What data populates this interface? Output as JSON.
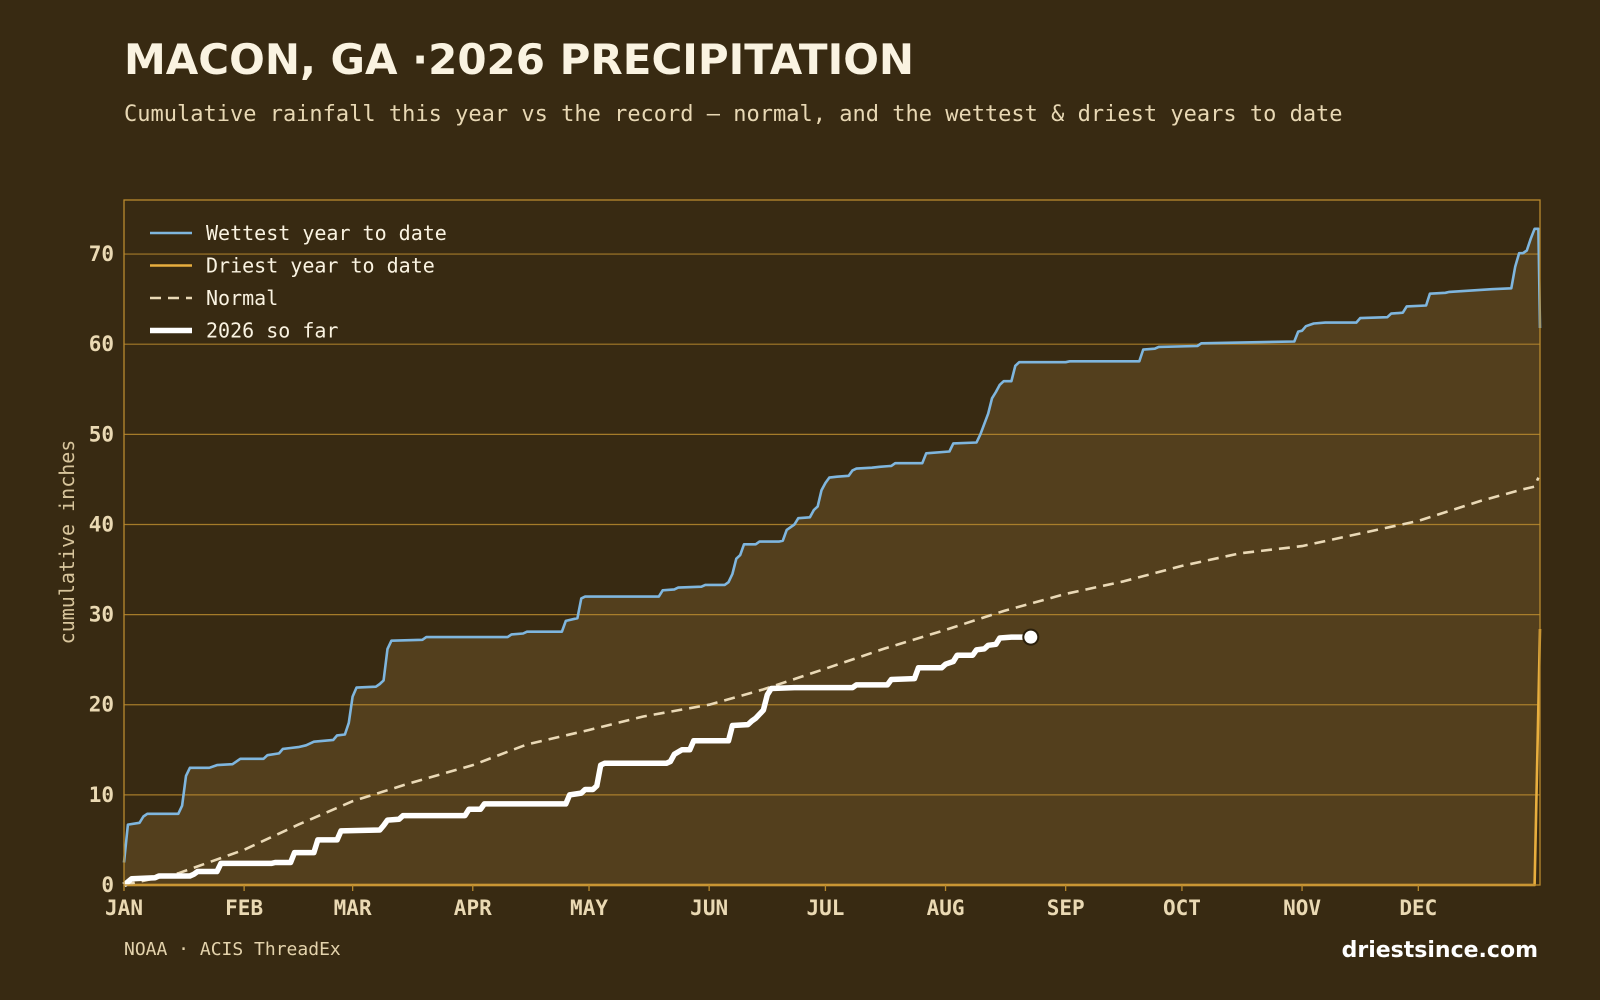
{
  "header": {
    "title": "MACON, GA ·2026 PRECIPITATION",
    "subtitle": "Cumulative rainfall this year vs the record — normal, and the wettest & driest years to date"
  },
  "footer": {
    "source": "NOAA · ACIS ThreadEx",
    "brand": "driestsince.com"
  },
  "colors": {
    "background": "#382a12",
    "fill": "#533f1d",
    "grid": "#b98a2e",
    "wettest": "#7fb6de",
    "driest": "#e8ae3e",
    "normal": "#ead9b6",
    "current": "#ffffff"
  },
  "chart_data": {
    "type": "line",
    "title": "MACON, GA ·2026 PRECIPITATION",
    "subtitle": "Cumulative rainfall this year vs the record — normal, and the wettest & driest years to date",
    "xlabel": "",
    "ylabel": "cumulative inches",
    "x_unit": "day of year",
    "xlim": [
      1,
      366
    ],
    "ylim": [
      0,
      76
    ],
    "y_ticks": [
      0,
      10,
      20,
      30,
      40,
      50,
      60,
      70
    ],
    "x_ticks": [
      {
        "label": "JAN",
        "day": 1
      },
      {
        "label": "FEB",
        "day": 32
      },
      {
        "label": "MAR",
        "day": 60
      },
      {
        "label": "APR",
        "day": 91
      },
      {
        "label": "MAY",
        "day": 121
      },
      {
        "label": "JUN",
        "day": 152
      },
      {
        "label": "JUL",
        "day": 182
      },
      {
        "label": "AUG",
        "day": 213
      },
      {
        "label": "SEP",
        "day": 244
      },
      {
        "label": "OCT",
        "day": 274
      },
      {
        "label": "NOV",
        "day": 305
      },
      {
        "label": "DEC",
        "day": 335
      }
    ],
    "grid": true,
    "legend_position": "top-left",
    "series": [
      {
        "name": "Wettest year to date",
        "key": "wettest",
        "style": "solid",
        "points": [
          [
            1,
            2.5
          ],
          [
            2,
            6.7
          ],
          [
            5,
            6.9
          ],
          [
            6,
            7.6
          ],
          [
            7,
            7.9
          ],
          [
            15,
            7.9
          ],
          [
            16,
            8.8
          ],
          [
            17,
            12.1
          ],
          [
            18,
            13
          ],
          [
            23,
            13
          ],
          [
            25,
            13.3
          ],
          [
            29,
            13.4
          ],
          [
            31,
            14
          ],
          [
            37,
            14
          ],
          [
            38,
            14.4
          ],
          [
            41,
            14.6
          ],
          [
            42,
            15.1
          ],
          [
            44,
            15.2
          ],
          [
            46,
            15.3
          ],
          [
            48,
            15.5
          ],
          [
            50,
            15.9
          ],
          [
            55,
            16.1
          ],
          [
            56,
            16.6
          ],
          [
            58,
            16.7
          ],
          [
            59,
            18
          ],
          [
            60,
            20.9
          ],
          [
            61,
            21.9
          ],
          [
            66,
            22
          ],
          [
            67,
            22.3
          ],
          [
            68,
            22.7
          ],
          [
            69,
            26.2
          ],
          [
            70,
            27.1
          ],
          [
            78,
            27.2
          ],
          [
            79,
            27.5
          ],
          [
            90,
            27.5
          ],
          [
            91,
            27.5
          ],
          [
            100,
            27.5
          ],
          [
            101,
            27.8
          ],
          [
            104,
            27.9
          ],
          [
            105,
            28.1
          ],
          [
            114,
            28.1
          ],
          [
            115,
            29.3
          ],
          [
            118,
            29.6
          ],
          [
            119,
            31.8
          ],
          [
            120,
            32
          ],
          [
            139,
            32
          ],
          [
            140,
            32.7
          ],
          [
            143,
            32.8
          ],
          [
            144,
            33
          ],
          [
            150,
            33.1
          ],
          [
            151,
            33.3
          ],
          [
            156,
            33.3
          ],
          [
            157,
            33.6
          ],
          [
            158,
            34.5
          ],
          [
            159,
            36.2
          ],
          [
            160,
            36.6
          ],
          [
            161,
            37.8
          ],
          [
            164,
            37.8
          ],
          [
            165,
            38.1
          ],
          [
            170,
            38.1
          ],
          [
            171,
            38.2
          ],
          [
            172,
            39.4
          ],
          [
            174,
            40
          ],
          [
            175,
            40.7
          ],
          [
            178,
            40.8
          ],
          [
            179,
            41.6
          ],
          [
            180,
            42
          ],
          [
            181,
            43.8
          ],
          [
            182,
            44.6
          ],
          [
            183,
            45.2
          ],
          [
            185,
            45.3
          ],
          [
            188,
            45.4
          ],
          [
            189,
            46
          ],
          [
            190,
            46.2
          ],
          [
            194,
            46.3
          ],
          [
            196,
            46.4
          ],
          [
            199,
            46.5
          ],
          [
            200,
            46.8
          ],
          [
            207,
            46.8
          ],
          [
            208,
            47.9
          ],
          [
            214,
            48.1
          ],
          [
            215,
            49
          ],
          [
            221,
            49.1
          ],
          [
            222,
            50
          ],
          [
            224,
            52.3
          ],
          [
            225,
            54
          ],
          [
            226,
            54.7
          ],
          [
            227,
            55.5
          ],
          [
            228,
            55.9
          ],
          [
            230,
            55.9
          ],
          [
            231,
            57.6
          ],
          [
            232,
            58
          ],
          [
            244,
            58
          ],
          [
            245,
            58.1
          ],
          [
            263,
            58.1
          ],
          [
            264,
            59.4
          ],
          [
            267,
            59.5
          ],
          [
            268,
            59.7
          ],
          [
            278,
            59.8
          ],
          [
            279,
            60.1
          ],
          [
            303,
            60.3
          ],
          [
            304,
            61.4
          ],
          [
            305,
            61.5
          ],
          [
            306,
            62
          ],
          [
            308,
            62.3
          ],
          [
            311,
            62.4
          ],
          [
            319,
            62.4
          ],
          [
            320,
            62.9
          ],
          [
            327,
            63
          ],
          [
            328,
            63.4
          ],
          [
            331,
            63.5
          ],
          [
            332,
            64.2
          ],
          [
            337,
            64.3
          ],
          [
            338,
            65.6
          ],
          [
            342,
            65.7
          ],
          [
            343,
            65.8
          ],
          [
            354,
            66.1
          ],
          [
            359,
            66.2
          ],
          [
            360,
            68.6
          ],
          [
            361,
            70.1
          ],
          [
            362,
            70.1
          ],
          [
            363,
            70.4
          ],
          [
            364,
            71.7
          ],
          [
            365,
            72.8
          ],
          [
            366,
            72.8
          ],
          [
            366.4,
            61.8
          ]
        ]
      },
      {
        "name": "Driest year to date",
        "key": "driest",
        "style": "solid",
        "points": [
          [
            1,
            0
          ],
          [
            365,
            0
          ],
          [
            366.4,
            28.4
          ]
        ]
      },
      {
        "name": "Normal",
        "key": "normal",
        "style": "dashed",
        "points": [
          [
            1,
            0
          ],
          [
            15,
            1.3
          ],
          [
            32,
            3.9
          ],
          [
            46,
            6.7
          ],
          [
            60,
            9.3
          ],
          [
            74,
            11.2
          ],
          [
            91,
            13.3
          ],
          [
            105,
            15.6
          ],
          [
            121,
            17.2
          ],
          [
            135,
            18.7
          ],
          [
            152,
            20
          ],
          [
            166,
            21.7
          ],
          [
            182,
            24
          ],
          [
            197,
            26.2
          ],
          [
            213,
            28.3
          ],
          [
            228,
            30.4
          ],
          [
            244,
            32.3
          ],
          [
            259,
            33.7
          ],
          [
            274,
            35.4
          ],
          [
            289,
            36.8
          ],
          [
            305,
            37.6
          ],
          [
            320,
            39
          ],
          [
            335,
            40.4
          ],
          [
            351,
            42.6
          ],
          [
            362,
            43.9
          ],
          [
            365,
            44.2
          ],
          [
            366,
            45.2
          ]
        ]
      },
      {
        "name": "2026 so far",
        "key": "current",
        "style": "solid-thick",
        "points": [
          [
            1,
            0
          ],
          [
            3,
            0.7
          ],
          [
            9,
            0.8
          ],
          [
            10,
            1
          ],
          [
            18,
            1
          ],
          [
            19,
            1.2
          ],
          [
            20,
            1.5
          ],
          [
            25,
            1.5
          ],
          [
            26,
            2.4
          ],
          [
            39,
            2.4
          ],
          [
            40,
            2.5
          ],
          [
            44,
            2.5
          ],
          [
            45,
            3.6
          ],
          [
            50,
            3.6
          ],
          [
            51,
            5
          ],
          [
            56,
            5
          ],
          [
            57,
            6
          ],
          [
            67,
            6.1
          ],
          [
            68,
            6.6
          ],
          [
            69,
            7.2
          ],
          [
            72,
            7.3
          ],
          [
            73,
            7.7
          ],
          [
            89,
            7.7
          ],
          [
            90,
            8.4
          ],
          [
            93,
            8.4
          ],
          [
            94,
            9
          ],
          [
            115,
            9
          ],
          [
            116,
            10
          ],
          [
            119,
            10.2
          ],
          [
            120,
            10.6
          ],
          [
            122,
            10.6
          ],
          [
            123,
            11
          ],
          [
            124,
            13.3
          ],
          [
            125,
            13.5
          ],
          [
            141,
            13.5
          ],
          [
            142,
            13.7
          ],
          [
            143,
            14.5
          ],
          [
            145,
            15
          ],
          [
            147,
            15
          ],
          [
            148,
            16
          ],
          [
            157,
            16
          ],
          [
            158,
            17.7
          ],
          [
            162,
            17.8
          ],
          [
            163,
            18.2
          ],
          [
            164,
            18.5
          ],
          [
            166,
            19.4
          ],
          [
            167,
            21.1
          ],
          [
            168,
            21.8
          ],
          [
            174,
            21.9
          ],
          [
            189,
            21.9
          ],
          [
            190,
            22.2
          ],
          [
            198,
            22.2
          ],
          [
            199,
            22.8
          ],
          [
            205,
            22.9
          ],
          [
            206,
            24.1
          ],
          [
            212,
            24.1
          ],
          [
            213,
            24.5
          ],
          [
            215,
            24.8
          ],
          [
            216,
            25.5
          ],
          [
            220,
            25.5
          ],
          [
            221,
            26.1
          ],
          [
            223,
            26.2
          ],
          [
            224,
            26.6
          ],
          [
            226,
            26.7
          ],
          [
            227,
            27.4
          ],
          [
            230,
            27.5
          ],
          [
            235,
            27.5
          ]
        ],
        "latest": [
          235,
          27.5
        ]
      }
    ]
  }
}
